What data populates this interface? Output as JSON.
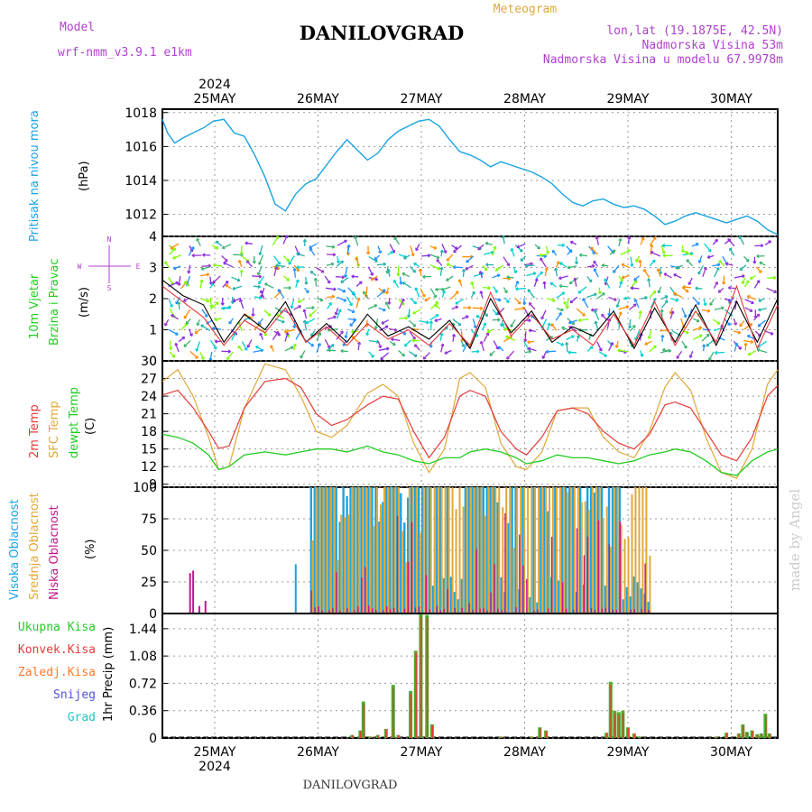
{
  "header": {
    "model_label": "Model",
    "model_name": "wrf-nmm_v3.9.1 e1km",
    "station": "DANILOVGRAD",
    "meteogram": "Meteogram",
    "lonlat": "lon,lat (19.1875E, 42.5N)",
    "elev": "Nadmorska Visina 53m",
    "elev_model": "Nadmorska Visina u modelu 67.9978m"
  },
  "footer": {
    "station": "DANILOVGRAD",
    "credit": "made by Angel"
  },
  "colors": {
    "pressure": "#1ba3e0",
    "wind_speed": "#000000",
    "gust": "#e63a3a",
    "temp2m": "#e63a3a",
    "sfc": "#e0a83a",
    "dew": "#22cc22",
    "high_cloud": "#1ba3e0",
    "mid_cloud": "#e0a83a",
    "low_cloud": "#c2178a",
    "total_precip": "#4caf2a",
    "conv_precip": "#e63a3a"
  },
  "panel_labels": {
    "pressure": [
      "Pritisak na nivou mora",
      "(hPa)"
    ],
    "wind": [
      "10m Vjetar",
      "Brzina i Pravac",
      "(m/s)"
    ],
    "compass": {
      "n": "N",
      "s": "S",
      "w": "W",
      "e": "E"
    },
    "temp": [
      "2m Temp",
      "SFC Temp",
      "dewpt Temp",
      "(C)"
    ],
    "cloud": [
      "Visoka Oblacnost",
      "Srednja Oblacnost",
      "Niska Oblacnost",
      "(%)"
    ],
    "precip": [
      "Ukupna Kisa",
      "Konvek.Kisa",
      "Zaledj.Kisa",
      "Snijeg",
      "Grad",
      "1hr Precip (mm)"
    ]
  },
  "chart_data": {
    "type": "line",
    "x_axis": {
      "year": "2024",
      "days": [
        "25MAY",
        "26MAY",
        "27MAY",
        "28MAY",
        "29MAY",
        "30MAY"
      ]
    },
    "pressure": {
      "ylabel": "hPa",
      "yticks": [
        "1018",
        "1016",
        "1014",
        "1012"
      ],
      "ylim": [
        1010.7,
        1018.2
      ],
      "x": [
        0,
        0.05,
        0.12,
        0.2,
        0.3,
        0.4,
        0.5,
        0.6,
        0.7,
        0.8,
        0.9,
        1.0,
        1.1,
        1.2,
        1.3,
        1.4,
        1.5,
        1.6,
        1.7,
        1.8,
        1.9,
        2.0,
        2.1,
        2.2,
        2.3,
        2.4,
        2.5,
        2.6,
        2.7,
        2.8,
        2.9,
        3.0,
        3.1,
        3.2,
        3.3,
        3.4,
        3.5,
        3.6,
        3.7,
        3.8,
        3.9,
        4.0,
        4.1,
        4.2,
        4.3,
        4.4,
        4.5,
        4.6,
        4.7,
        4.8,
        4.9,
        5.0,
        5.1,
        5.2,
        5.3,
        5.4,
        5.5,
        5.6,
        5.7,
        5.8,
        5.9,
        6.0
      ],
      "y": [
        1017.6,
        1016.8,
        1016.2,
        1016.5,
        1016.8,
        1017.1,
        1017.5,
        1017.6,
        1016.8,
        1016.6,
        1015.5,
        1014.2,
        1012.6,
        1012.2,
        1013.2,
        1013.8,
        1014.1,
        1014.9,
        1015.7,
        1016.4,
        1015.8,
        1015.2,
        1015.6,
        1016.4,
        1016.9,
        1017.2,
        1017.5,
        1017.6,
        1017.2,
        1016.4,
        1015.7,
        1015.5,
        1015.2,
        1014.8,
        1015.1,
        1014.9,
        1014.7,
        1014.5,
        1014.2,
        1013.8,
        1013.2,
        1012.7,
        1012.5,
        1012.8,
        1012.9,
        1012.6,
        1012.4,
        1012.5,
        1012.3,
        1011.9,
        1011.4,
        1011.6,
        1011.9,
        1012.1,
        1011.9,
        1011.7,
        1011.5,
        1011.7,
        1011.9,
        1011.6,
        1011.1,
        1010.8
      ]
    },
    "wind": {
      "ylabel": "m/s",
      "yticks": [
        "4",
        "3",
        "2",
        "1",
        "0"
      ],
      "ylim": [
        0,
        4
      ],
      "x": [
        0,
        0.2,
        0.4,
        0.6,
        0.8,
        1.0,
        1.2,
        1.4,
        1.6,
        1.8,
        2.0,
        2.2,
        2.4,
        2.6,
        2.8,
        3.0,
        3.2,
        3.4,
        3.6,
        3.8,
        4.0,
        4.2,
        4.4,
        4.6,
        4.8,
        5.0,
        5.2,
        5.4,
        5.6,
        5.8,
        6.0
      ],
      "speed": [
        2.6,
        2.1,
        1.8,
        0.6,
        1.5,
        1.0,
        1.9,
        0.6,
        1.2,
        0.6,
        1.5,
        0.8,
        1.1,
        0.7,
        1.3,
        0.4,
        2.0,
        0.9,
        1.6,
        0.6,
        1.1,
        0.8,
        1.6,
        0.4,
        1.7,
        0.6,
        1.8,
        0.5,
        1.9,
        0.6,
        2.0
      ],
      "gust": [
        2.4,
        1.9,
        1.4,
        0.5,
        1.3,
        0.9,
        1.7,
        0.6,
        1.1,
        0.5,
        1.2,
        0.7,
        1.0,
        0.5,
        1.2,
        0.5,
        2.2,
        0.8,
        1.5,
        0.7,
        1.0,
        0.5,
        1.5,
        0.5,
        1.9,
        0.5,
        1.6,
        0.6,
        2.4,
        0.4,
        1.8
      ]
    },
    "temperature": {
      "ylabel": "C",
      "yticks": [
        "30",
        "27",
        "24",
        "21",
        "18",
        "15",
        "12",
        "9"
      ],
      "ylim": [
        8.5,
        30
      ],
      "x": [
        0,
        0.15,
        0.3,
        0.45,
        0.55,
        0.65,
        0.8,
        1.0,
        1.2,
        1.35,
        1.5,
        1.65,
        1.8,
        2.0,
        2.15,
        2.3,
        2.45,
        2.6,
        2.75,
        2.9,
        3.0,
        3.15,
        3.3,
        3.45,
        3.55,
        3.7,
        3.85,
        4.0,
        4.15,
        4.3,
        4.45,
        4.6,
        4.75,
        4.9,
        5.0,
        5.15,
        5.3,
        5.45,
        5.6,
        5.75,
        5.9,
        6.0
      ],
      "t2m": [
        24.2,
        25.0,
        22.0,
        18.0,
        15.1,
        15.5,
        22.0,
        26.5,
        27.0,
        25.5,
        21.0,
        19.0,
        20.0,
        22.5,
        24.0,
        23.5,
        18.0,
        13.5,
        17.0,
        24.0,
        25.0,
        24.0,
        18.0,
        15.0,
        14.0,
        17.0,
        21.5,
        22.0,
        21.0,
        18.0,
        16.0,
        15.0,
        17.5,
        22.5,
        23.0,
        22.0,
        18.0,
        14.0,
        13.0,
        17.0,
        24.0,
        25.8
      ],
      "sfc": [
        26.5,
        28.5,
        24.0,
        17.0,
        11.5,
        12.0,
        22.0,
        29.5,
        28.5,
        24.0,
        18.0,
        17.0,
        19.0,
        24.5,
        26.0,
        24.0,
        16.0,
        11.0,
        15.0,
        27.0,
        28.0,
        25.5,
        16.0,
        12.0,
        11.5,
        14.5,
        21.5,
        22.0,
        22.0,
        17.0,
        14.5,
        13.5,
        18.0,
        25.5,
        28.0,
        25.0,
        17.0,
        11.0,
        10.0,
        15.0,
        26.0,
        28.5
      ],
      "dew": [
        17.5,
        17.0,
        16.0,
        14.0,
        11.5,
        12.0,
        14.0,
        14.5,
        14.0,
        14.5,
        15.0,
        15.0,
        14.5,
        15.5,
        14.5,
        14.0,
        13.0,
        12.5,
        13.5,
        13.5,
        14.5,
        15.0,
        14.5,
        13.5,
        12.5,
        13.0,
        14.0,
        13.5,
        13.5,
        13.0,
        12.5,
        13.0,
        14.0,
        14.5,
        15.0,
        14.5,
        13.0,
        11.0,
        10.5,
        13.0,
        14.5,
        15.0
      ]
    },
    "cloud": {
      "ylabel": "%",
      "yticks": [
        "100",
        "75",
        "50",
        "25",
        "0"
      ],
      "ylim": [
        0,
        100
      ],
      "dense_start": 1.45,
      "dense_end": 4.75,
      "early_bars": [
        [
          0.27,
          32,
          "low"
        ],
        [
          0.3,
          34,
          "low"
        ],
        [
          0.36,
          6,
          "low"
        ],
        [
          0.42,
          10,
          "low"
        ],
        [
          1.3,
          39,
          "high"
        ]
      ]
    },
    "precip": {
      "ylabel": "mm",
      "yticks": [
        "1.44",
        "1.08",
        "0.72",
        "0.36",
        "0"
      ],
      "ylim": [
        0,
        1.64
      ],
      "bars": [
        [
          1.85,
          0.04
        ],
        [
          1.93,
          0.1
        ],
        [
          1.96,
          0.48
        ],
        [
          2.03,
          0.02
        ],
        [
          2.1,
          0.04
        ],
        [
          2.18,
          0.12
        ],
        [
          2.25,
          0.7
        ],
        [
          2.3,
          0.04
        ],
        [
          2.42,
          0.62
        ],
        [
          2.47,
          1.15
        ],
        [
          2.52,
          1.63
        ],
        [
          2.58,
          1.62
        ],
        [
          2.63,
          0.18
        ],
        [
          3.3,
          0.02
        ],
        [
          3.6,
          0.02
        ],
        [
          3.68,
          0.14
        ],
        [
          3.74,
          0.1
        ],
        [
          4.33,
          0.07
        ],
        [
          4.37,
          0.74
        ],
        [
          4.41,
          0.36
        ],
        [
          4.45,
          0.34
        ],
        [
          4.49,
          0.36
        ],
        [
          4.54,
          0.14
        ],
        [
          4.6,
          0.06
        ],
        [
          4.65,
          0.02
        ],
        [
          5.4,
          0.02
        ],
        [
          5.5,
          0.07
        ],
        [
          5.62,
          0.06
        ],
        [
          5.66,
          0.18
        ],
        [
          5.7,
          0.08
        ],
        [
          5.75,
          0.1
        ],
        [
          5.8,
          0.05
        ],
        [
          5.84,
          0.06
        ],
        [
          5.88,
          0.32
        ],
        [
          5.92,
          0.06
        ]
      ],
      "legend": [
        "Ukupna Kisa",
        "Konvek.Kisa",
        "Zaledj.Kisa",
        "Snijeg",
        "Grad"
      ]
    }
  }
}
